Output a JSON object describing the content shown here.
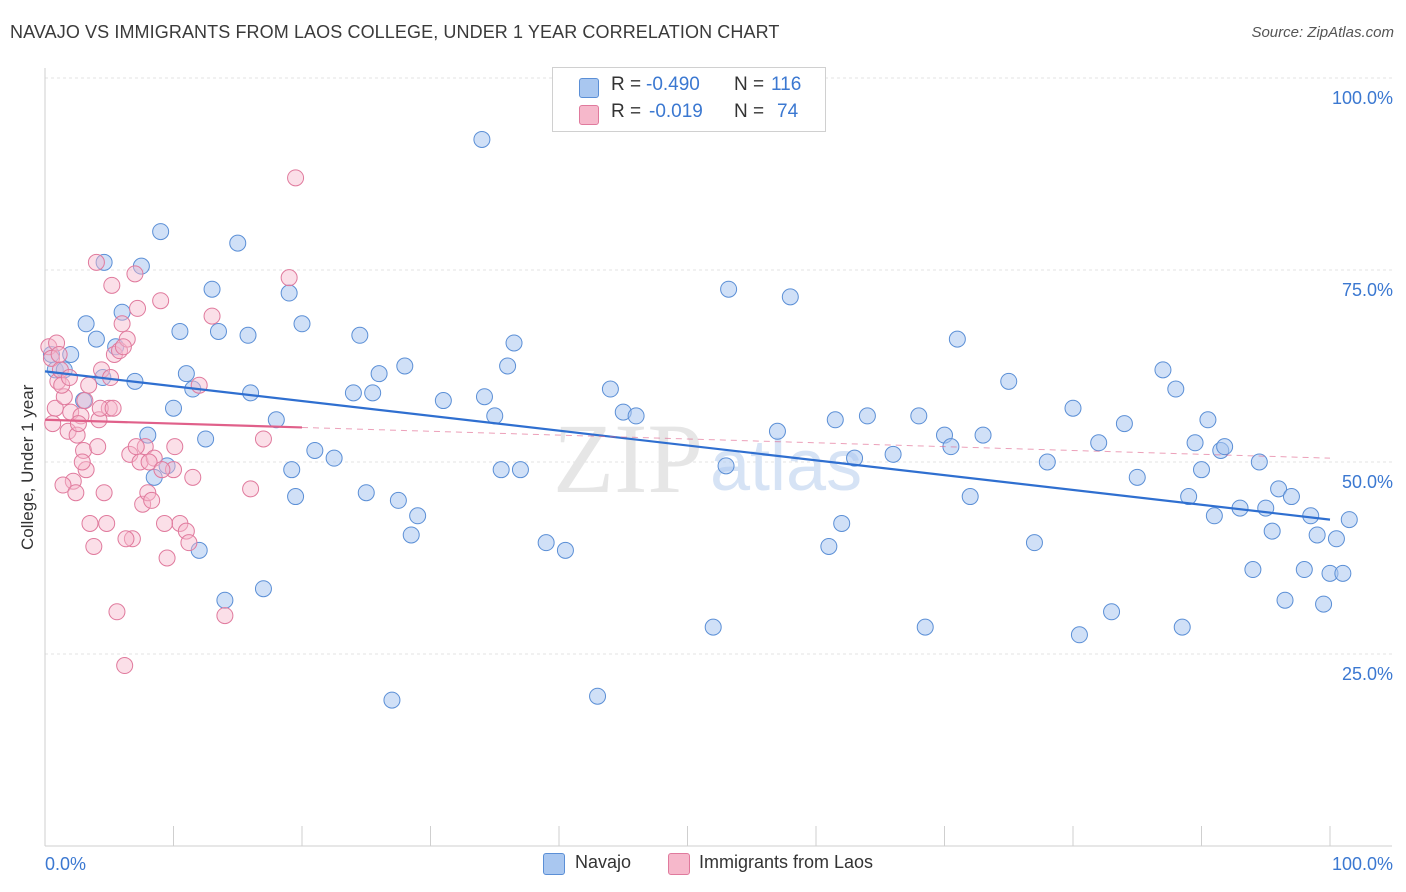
{
  "title": "NAVAJO VS IMMIGRANTS FROM LAOS COLLEGE, UNDER 1 YEAR CORRELATION CHART",
  "source": "Source: ZipAtlas.com",
  "watermark": {
    "zip": "ZIP",
    "atlas": "atlas"
  },
  "legend": {
    "navajo": {
      "r_label": "R =",
      "r_value": "-0.490",
      "n_label": "N =",
      "n_value": "116"
    },
    "laos": {
      "r_label": "R =",
      "r_value": "-0.019",
      "n_label": "N =",
      "n_value": "74"
    }
  },
  "bottom_legend": {
    "navajo": "Navajo",
    "laos": "Immigrants from Laos"
  },
  "colors": {
    "navajo_fill": "#a9c7f0",
    "navajo_stroke": "#5b8fd6",
    "navajo_line": "#2f6fd0",
    "laos_fill": "#f6b8cb",
    "laos_stroke": "#e07a9d",
    "laos_line": "#e0608a",
    "accent": "#3b78d1"
  },
  "chart_data": {
    "type": "scatter",
    "title": "NAVAJO VS IMMIGRANTS FROM LAOS COLLEGE, UNDER 1 YEAR CORRELATION CHART",
    "xlabel": "",
    "ylabel": "College, Under 1 year",
    "xlim": [
      0,
      100
    ],
    "ylim": [
      0,
      100
    ],
    "x_ticks": [
      "0.0%",
      "100.0%"
    ],
    "y_ticks": [
      "25.0%",
      "50.0%",
      "75.0%",
      "100.0%"
    ],
    "grid": true,
    "series": [
      {
        "name": "Navajo",
        "trend": {
          "x": [
            0,
            100
          ],
          "y": [
            61.8,
            42.5
          ]
        },
        "points": [
          [
            0.5,
            64
          ],
          [
            0.8,
            62
          ],
          [
            1.5,
            62
          ],
          [
            2,
            64
          ],
          [
            3,
            58
          ],
          [
            3.2,
            68
          ],
          [
            4,
            66
          ],
          [
            4.5,
            61
          ],
          [
            4.6,
            76
          ],
          [
            5.5,
            65
          ],
          [
            6,
            69.5
          ],
          [
            7,
            60.5
          ],
          [
            7.5,
            75.5
          ],
          [
            8,
            53.5
          ],
          [
            8.5,
            48
          ],
          [
            9,
            80
          ],
          [
            9.5,
            49.5
          ],
          [
            10,
            57
          ],
          [
            10.5,
            67
          ],
          [
            11,
            61.5
          ],
          [
            11.5,
            59.5
          ],
          [
            12,
            38.5
          ],
          [
            12.5,
            53
          ],
          [
            13,
            72.5
          ],
          [
            13.5,
            67
          ],
          [
            14,
            32
          ],
          [
            15,
            78.5
          ],
          [
            16,
            59
          ],
          [
            15.8,
            66.5
          ],
          [
            17,
            33.5
          ],
          [
            18,
            55.5
          ],
          [
            19,
            72
          ],
          [
            19.2,
            49
          ],
          [
            19.5,
            45.5
          ],
          [
            20,
            68
          ],
          [
            21,
            51.5
          ],
          [
            22.5,
            50.5
          ],
          [
            24,
            59
          ],
          [
            24.5,
            66.5
          ],
          [
            25,
            46
          ],
          [
            25.5,
            59
          ],
          [
            26,
            61.5
          ],
          [
            27,
            19
          ],
          [
            27.5,
            45
          ],
          [
            28,
            62.5
          ],
          [
            28.5,
            40.5
          ],
          [
            29,
            43
          ],
          [
            31,
            58
          ],
          [
            34,
            92
          ],
          [
            34.2,
            58.5
          ],
          [
            35,
            56
          ],
          [
            35.5,
            49
          ],
          [
            36,
            62.5
          ],
          [
            36.5,
            65.5
          ],
          [
            37,
            49
          ],
          [
            39,
            39.5
          ],
          [
            40.5,
            38.5
          ],
          [
            43,
            19.5
          ],
          [
            44,
            59.5
          ],
          [
            45,
            56.5
          ],
          [
            46,
            56
          ],
          [
            52,
            28.5
          ],
          [
            53,
            49.5
          ],
          [
            53.2,
            72.5
          ],
          [
            57,
            54
          ],
          [
            58,
            71.5
          ],
          [
            61,
            39
          ],
          [
            61.5,
            55.5
          ],
          [
            62,
            42
          ],
          [
            63,
            50.5
          ],
          [
            64,
            56
          ],
          [
            66,
            51
          ],
          [
            68,
            56
          ],
          [
            68.5,
            28.5
          ],
          [
            70,
            53.5
          ],
          [
            70.5,
            52
          ],
          [
            71,
            66
          ],
          [
            72,
            45.5
          ],
          [
            73,
            53.5
          ],
          [
            75,
            60.5
          ],
          [
            77,
            39.5
          ],
          [
            78,
            50
          ],
          [
            80,
            57
          ],
          [
            80.5,
            27.5
          ],
          [
            82,
            52.5
          ],
          [
            83,
            30.5
          ],
          [
            84,
            55
          ],
          [
            85,
            48
          ],
          [
            87,
            62
          ],
          [
            88,
            59.5
          ],
          [
            88.5,
            28.5
          ],
          [
            89,
            45.5
          ],
          [
            89.5,
            52.5
          ],
          [
            90,
            49
          ],
          [
            90.5,
            55.5
          ],
          [
            91,
            43
          ],
          [
            91.5,
            51.5
          ],
          [
            91.8,
            52
          ],
          [
            93,
            44
          ],
          [
            94,
            36
          ],
          [
            94.5,
            50
          ],
          [
            95,
            44
          ],
          [
            95.5,
            41
          ],
          [
            96,
            46.5
          ],
          [
            96.5,
            32
          ],
          [
            97,
            45.5
          ],
          [
            98,
            36
          ],
          [
            98.5,
            43
          ],
          [
            99,
            40.5
          ],
          [
            99.5,
            31.5
          ],
          [
            100,
            35.5
          ],
          [
            100.5,
            40
          ],
          [
            101,
            35.5
          ],
          [
            101.5,
            42.5
          ]
        ]
      },
      {
        "name": "Immigrants from Laos",
        "trend": {
          "x": [
            0,
            20
          ],
          "y": [
            55.5,
            54.5
          ]
        },
        "trend_dashed": {
          "x": [
            20,
            100
          ],
          "y": [
            54.5,
            50.5
          ]
        },
        "points": [
          [
            0.3,
            65
          ],
          [
            0.5,
            63.5
          ],
          [
            0.8,
            57
          ],
          [
            1,
            60.5
          ],
          [
            1.2,
            62
          ],
          [
            1.5,
            58.5
          ],
          [
            1.8,
            54
          ],
          [
            2,
            56.5
          ],
          [
            2.2,
            47.5
          ],
          [
            2.5,
            53.5
          ],
          [
            2.8,
            56
          ],
          [
            3,
            51.5
          ],
          [
            3.2,
            49
          ],
          [
            3.5,
            42
          ],
          [
            3.8,
            39
          ],
          [
            4,
            76
          ],
          [
            4.2,
            55.5
          ],
          [
            4.4,
            62
          ],
          [
            4.6,
            46
          ],
          [
            4.8,
            42
          ],
          [
            5,
            57
          ],
          [
            5.2,
            73
          ],
          [
            5.4,
            64
          ],
          [
            5.6,
            30.5
          ],
          [
            5.8,
            64.5
          ],
          [
            6,
            68
          ],
          [
            6.2,
            23.5
          ],
          [
            6.4,
            66
          ],
          [
            6.6,
            51
          ],
          [
            6.8,
            40
          ],
          [
            7,
            74.5
          ],
          [
            7.2,
            70
          ],
          [
            7.4,
            50
          ],
          [
            7.6,
            44.5
          ],
          [
            7.8,
            52
          ],
          [
            8,
            46
          ],
          [
            8.5,
            50.5
          ],
          [
            9,
            71
          ],
          [
            9.5,
            37.5
          ],
          [
            10,
            49
          ],
          [
            10.5,
            42
          ],
          [
            11,
            41
          ],
          [
            11.2,
            39.5
          ],
          [
            11.5,
            48
          ],
          [
            12,
            60
          ],
          [
            13,
            69
          ],
          [
            14,
            30
          ],
          [
            16,
            46.5
          ],
          [
            17,
            53
          ],
          [
            19,
            74
          ],
          [
            19.5,
            87
          ],
          [
            1.3,
            60
          ],
          [
            2.6,
            55
          ],
          [
            3.1,
            58
          ],
          [
            4.1,
            52
          ],
          [
            5.1,
            61
          ],
          [
            6.1,
            65
          ],
          [
            7.1,
            52
          ],
          [
            8.1,
            50
          ],
          [
            9.1,
            49
          ],
          [
            10.1,
            52
          ],
          [
            1.9,
            61
          ],
          [
            2.9,
            50
          ],
          [
            3.4,
            60
          ],
          [
            0.6,
            55
          ],
          [
            1.4,
            47
          ],
          [
            2.4,
            46
          ],
          [
            4.3,
            57
          ],
          [
            5.3,
            57
          ],
          [
            6.3,
            40
          ],
          [
            8.3,
            45
          ],
          [
            9.3,
            42
          ],
          [
            0.9,
            65.5
          ],
          [
            1.1,
            64
          ]
        ]
      }
    ]
  }
}
